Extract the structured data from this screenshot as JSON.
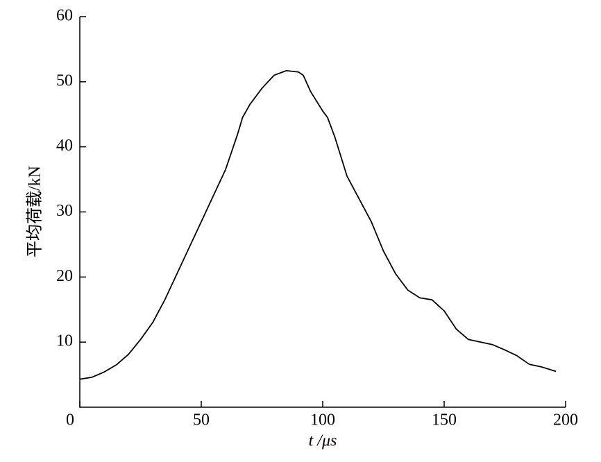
{
  "chart_data": {
    "type": "line",
    "xlabel": "t /μs",
    "ylabel": "平均荷载/kN",
    "xlim": [
      0,
      200
    ],
    "ylim": [
      0,
      60
    ],
    "xticks": [
      0,
      50,
      100,
      150,
      200
    ],
    "yticks": [
      10,
      20,
      30,
      40,
      50,
      60
    ],
    "color": "#000000",
    "x": [
      0,
      5,
      10,
      15,
      20,
      25,
      30,
      35,
      40,
      45,
      50,
      55,
      60,
      65,
      67,
      70,
      75,
      80,
      85,
      90,
      92,
      95,
      100,
      102,
      105,
      110,
      115,
      120,
      125,
      130,
      135,
      140,
      145,
      150,
      155,
      160,
      165,
      170,
      175,
      180,
      185,
      190,
      196
    ],
    "values": [
      4.3,
      4.6,
      5.4,
      6.5,
      8.1,
      10.4,
      13,
      16.5,
      20.5,
      24.5,
      28.5,
      32.5,
      36.5,
      42,
      44.5,
      46.5,
      49,
      51,
      51.7,
      51.5,
      51,
      48.5,
      45.5,
      44.5,
      41.5,
      35.5,
      32,
      28.5,
      24,
      20.5,
      18,
      16.8,
      16.5,
      14.8,
      12,
      10.4,
      10,
      9.6,
      8.8,
      7.9,
      6.6,
      6.2,
      5.5
    ]
  }
}
